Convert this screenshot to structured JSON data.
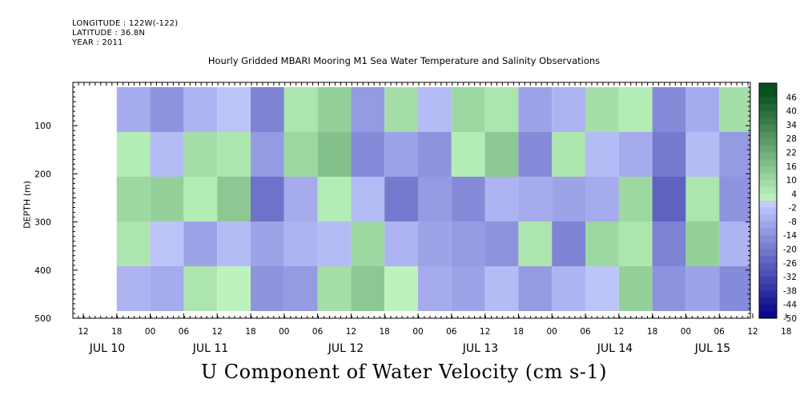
{
  "header": {
    "longitude": "LONGITUDE : 122W(-122)",
    "latitude": "LATITUDE : 36.8N",
    "year": "YEAR : 2011"
  },
  "chart_data": {
    "type": "heatmap",
    "title": "Hourly Gridded MBARI Mooring M1 Sea Water Temperature and Salinity Observations",
    "xlabel": "U Component of Water Velocity (cm s-1)",
    "ylabel": "DEPTH (m)",
    "x_tick_hours": [
      "12",
      "18",
      "00",
      "06",
      "12",
      "18",
      "00",
      "06",
      "12",
      "18",
      "00",
      "06",
      "12",
      "18",
      "00",
      "06",
      "12",
      "18",
      "00",
      "06",
      "12",
      "18",
      "00",
      "06"
    ],
    "x_tick_days": [
      "JUL 10",
      "JUL 11",
      "JUL 12",
      "JUL 13",
      "JUL 14",
      "JUL 15"
    ],
    "y_ticks": [
      100,
      200,
      300,
      400,
      500
    ],
    "ylim": [
      500,
      10
    ],
    "data_depth_range": [
      20,
      485
    ],
    "colorbar": {
      "labels": [
        "46",
        "40",
        "34",
        "28",
        "22",
        "16",
        "10",
        "4",
        "-2",
        "-8",
        "-14",
        "-20",
        "-26",
        "-32",
        "-38",
        "-44",
        "-50"
      ],
      "range": [
        -50,
        52
      ]
    },
    "columns": [
      {
        "label": "JUL 10 18-24h",
        "values": [
          -8,
          4,
          10,
          6,
          -6
        ]
      },
      {
        "label": "JUL 11 00-06h",
        "values": [
          -14,
          -4,
          12,
          -2,
          -8
        ]
      },
      {
        "label": "JUL 11 06-12h",
        "values": [
          -6,
          8,
          4,
          -10,
          6
        ]
      },
      {
        "label": "JUL 11 12-18h",
        "values": [
          -2,
          6,
          14,
          -4,
          2
        ]
      },
      {
        "label": "JUL 11 18-24h",
        "values": [
          -18,
          -12,
          -22,
          -10,
          -14
        ]
      },
      {
        "label": "JUL 12 00-06h",
        "values": [
          6,
          10,
          -8,
          -6,
          -12
        ]
      },
      {
        "label": "JUL 12 06-12h",
        "values": [
          12,
          16,
          4,
          -4,
          8
        ]
      },
      {
        "label": "JUL 12 12-18h",
        "values": [
          -12,
          -16,
          -4,
          10,
          14
        ]
      },
      {
        "label": "JUL 12 18-24h",
        "values": [
          8,
          -10,
          -20,
          -6,
          2
        ]
      },
      {
        "label": "JUL 13 00-06h",
        "values": [
          -4,
          -14,
          -12,
          -10,
          -8
        ]
      },
      {
        "label": "JUL 13 06-12h",
        "values": [
          10,
          4,
          -16,
          -12,
          -10
        ]
      },
      {
        "label": "JUL 13 12-18h",
        "values": [
          6,
          14,
          -6,
          -14,
          -4
        ]
      },
      {
        "label": "JUL 13 18-24h",
        "values": [
          -10,
          -16,
          -8,
          6,
          -12
        ]
      },
      {
        "label": "JUL 14 00-06h",
        "values": [
          -6,
          6,
          -10,
          -18,
          -6
        ]
      },
      {
        "label": "JUL 14 06-12h",
        "values": [
          8,
          -4,
          -8,
          10,
          -2
        ]
      },
      {
        "label": "JUL 14 12-18h",
        "values": [
          4,
          -8,
          10,
          6,
          12
        ]
      },
      {
        "label": "JUL 14 18-24h",
        "values": [
          -16,
          -20,
          -26,
          -18,
          -14
        ]
      },
      {
        "label": "JUL 15 00-06h",
        "values": [
          -8,
          -4,
          6,
          12,
          -10
        ]
      },
      {
        "label": "JUL 15 06-09h",
        "values": [
          8,
          -12,
          -14,
          -6,
          -16
        ]
      }
    ]
  }
}
